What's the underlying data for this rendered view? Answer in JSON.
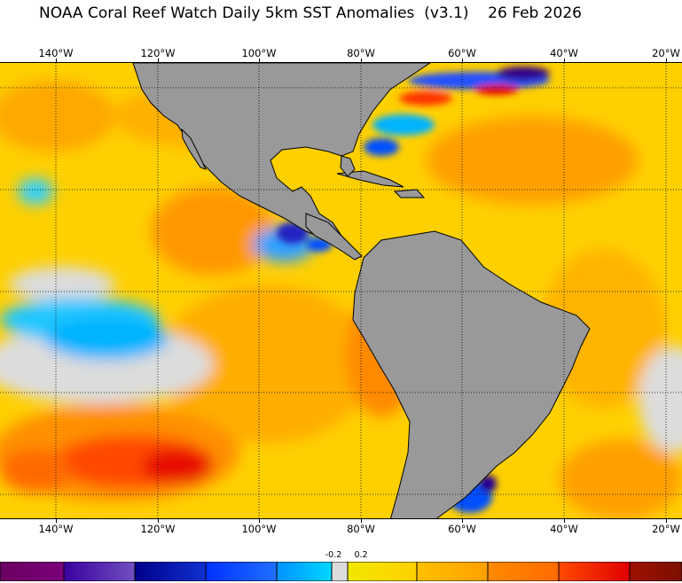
{
  "title": "NOAA Coral Reef Watch Daily 5km SST Anomalies  (v3.1)    26 Feb 2026",
  "map": {
    "longitude_labels": [
      "140°W",
      "120°W",
      "100°W",
      "80°W",
      "60°W",
      "40°W",
      "20°W"
    ],
    "colors": {
      "land": "#999999",
      "near_zero": "#dcdcdc",
      "warm": "#ffd200",
      "warmer": "#ffa000",
      "hot": "#ff5a00",
      "cold": "#00b4ff",
      "colder": "#0050ff",
      "coldest": "#200090"
    }
  },
  "colorbar": {
    "labels": [
      "-0.2",
      "0.2"
    ],
    "segments": [
      [
        "#6a0060",
        "#7a007a"
      ],
      [
        "#3a00a0",
        "#7050c0"
      ],
      [
        "#00008a",
        "#1030d0"
      ],
      [
        "#0030ff",
        "#2070ff"
      ],
      [
        "#0090ff",
        "#00d8ff"
      ],
      [
        "#dcdcdc",
        "#dcdcdc"
      ],
      [
        "#f0e800",
        "#ffd000"
      ],
      [
        "#ffc000",
        "#ffa000"
      ],
      [
        "#ff8a00",
        "#ff6a00"
      ],
      [
        "#ff4a00",
        "#e00000"
      ],
      [
        "#a01000",
        "#7a1000"
      ]
    ]
  }
}
